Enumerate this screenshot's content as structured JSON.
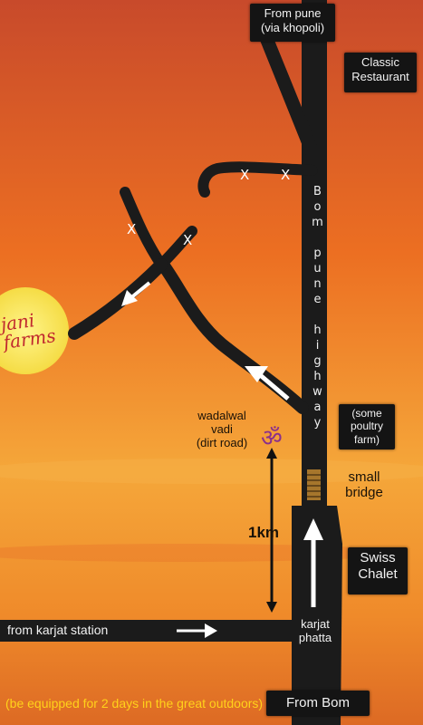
{
  "labels": {
    "from_pune": [
      "From pune",
      "(via khopoli)"
    ],
    "classic_restaurant": [
      "Classic",
      "Restaurant"
    ],
    "highway": "Bom pune highway",
    "farm": "jani farms",
    "poultry_farm": [
      "(some",
      "poultry",
      "farm)"
    ],
    "wadalwal": [
      "wadalwal",
      "vadi",
      "(dirt road)"
    ],
    "om_symbol": "ॐ",
    "small_bridge": [
      "small",
      "bridge"
    ],
    "distance": "1km",
    "swiss_chalet": [
      "Swiss",
      "Chalet"
    ],
    "karjat_station": "from karjat station",
    "karjat_phatta": [
      "karjat",
      "phatta"
    ],
    "from_bom": "From Bom",
    "footer_note": "(be equipped for 2 days in the great outdoors)",
    "x_mark": "X"
  },
  "colors": {
    "sky_top": "#d7552a",
    "sky_mid": "#ef7a22",
    "sky_low": "#f4a63a",
    "sun": "#f7e85a",
    "road": "#1b1b1b",
    "arrow": "#ffffff",
    "footer_text": "#ffd21a",
    "om": "#8a2f8c",
    "farm_text": "#c0282e"
  }
}
